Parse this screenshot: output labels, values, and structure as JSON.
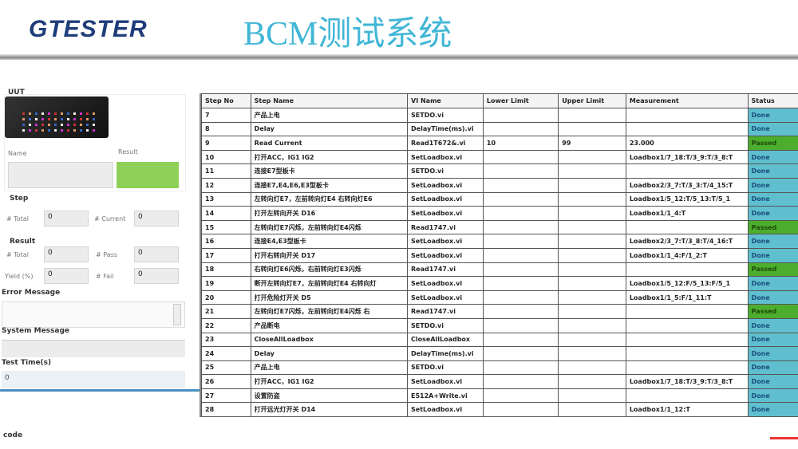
{
  "header": {
    "logo": "GTESTER",
    "title": "BCM测试系统"
  },
  "left": {
    "uut_label": "UUT",
    "name_label": "Name",
    "result_label": "Result",
    "name_value": "",
    "result_color": "#8fd058",
    "step_label": "Step",
    "step_total_label": "# Total",
    "step_total": "0",
    "step_current_label": "# Current",
    "step_current": "0",
    "result_section": "Result",
    "res_total_label": "# Total",
    "res_total": "0",
    "pass_label": "# Pass",
    "pass": "0",
    "yield_label": "Yield (%)",
    "yield": "0",
    "fail_label": "# Fail",
    "fail": "0",
    "error_label": "Error Message",
    "system_label": "System Message",
    "time_label": "Test Time(s)",
    "time_value": "0",
    "footer": "code"
  },
  "table": {
    "headers": [
      "Step No",
      "Step Name",
      "VI Name",
      "Lower Limit",
      "Upper Limit",
      "Measurement",
      "Status"
    ],
    "status_colors": {
      "Done": "#5fbfcf",
      "Passed": "#4cae2c"
    },
    "rows": [
      [
        "7",
        "产品上电",
        "SETDO.vi",
        "",
        "",
        "",
        "Done"
      ],
      [
        "8",
        "Delay",
        "DelayTime(ms).vi",
        "",
        "",
        "",
        "Done"
      ],
      [
        "9",
        "Read Current",
        "Read1T672&.vi",
        "10",
        "99",
        "23.000",
        "Passed"
      ],
      [
        "10",
        "打开ACC，IG1 IG2",
        "SetLoadbox.vi",
        "",
        "",
        "Loadbox1/7_18:T/3_9:T/3_8:T",
        "Done"
      ],
      [
        "11",
        "连接E7型板卡",
        "SETDO.vi",
        "",
        "",
        "",
        "Done"
      ],
      [
        "12",
        "连接E7,E4,E6,E3型板卡",
        "SetLoadbox.vi",
        "",
        "",
        "Loadbox2/3_7:T/3_3:T/4_15:T",
        "Done"
      ],
      [
        "13",
        "左转向灯E7，左前转向灯E4 右转向灯E6",
        "SetLoadbox.vi",
        "",
        "",
        "Loadbox1/5_12:T/5_13:T/5_1",
        "Done"
      ],
      [
        "14",
        "打开左转向开关 D16",
        "SetLoadbox.vi",
        "",
        "",
        "Loadbox1/1_4:T",
        "Done"
      ],
      [
        "15",
        "左转向灯E7闪烁，左前转向灯E4闪烁",
        "Read1747.vi",
        "",
        "",
        "",
        "Passed"
      ],
      [
        "16",
        "连接E4,E3型板卡",
        "SetLoadbox.vi",
        "",
        "",
        "Loadbox2/3_7:T/3_8:T/4_16:T",
        "Done"
      ],
      [
        "17",
        "打开右转向开关 D17",
        "SetLoadbox.vi",
        "",
        "",
        "Loadbox1/1_4:F/1_2:T",
        "Done"
      ],
      [
        "18",
        "右转向灯E6闪烁，右前转向灯E3闪烁",
        "Read1747.vi",
        "",
        "",
        "",
        "Passed"
      ],
      [
        "19",
        "断开左转向灯E7，左前转向灯E4 右转向灯",
        "SetLoadbox.vi",
        "",
        "",
        "Loadbox1/5_12:F/5_13:F/5_1",
        "Done"
      ],
      [
        "20",
        "打开危险灯开关 D5",
        "SetLoadbox.vi",
        "",
        "",
        "Loadbox1/1_5:F/1_11:T",
        "Done"
      ],
      [
        "21",
        "左转向灯E7闪烁，左前转向灯E4闪烁 右",
        "Read1747.vi",
        "",
        "",
        "",
        "Passed"
      ],
      [
        "22",
        "产品断电",
        "SETDO.vi",
        "",
        "",
        "",
        "Done"
      ],
      [
        "23",
        "CloseAllLoadbox",
        "CloseAllLoadbox",
        "",
        "",
        "",
        "Done"
      ],
      [
        "24",
        "Delay",
        "DelayTime(ms).vi",
        "",
        "",
        "",
        "Done"
      ],
      [
        "25",
        "产品上电",
        "SETDO.vi",
        "",
        "",
        "",
        "Done"
      ],
      [
        "26",
        "打开ACC，IG1 IG2",
        "SetLoadbox.vi",
        "",
        "",
        "Loadbox1/7_18:T/3_9:T/3_8:T",
        "Done"
      ],
      [
        "27",
        "设置防盗",
        "E512A+Write.vi",
        "",
        "",
        "",
        "Done"
      ],
      [
        "28",
        "打开远光灯开关 D14",
        "SetLoadbox.vi",
        "",
        "",
        "Loadbox1/1_12:T",
        "Done"
      ]
    ]
  }
}
